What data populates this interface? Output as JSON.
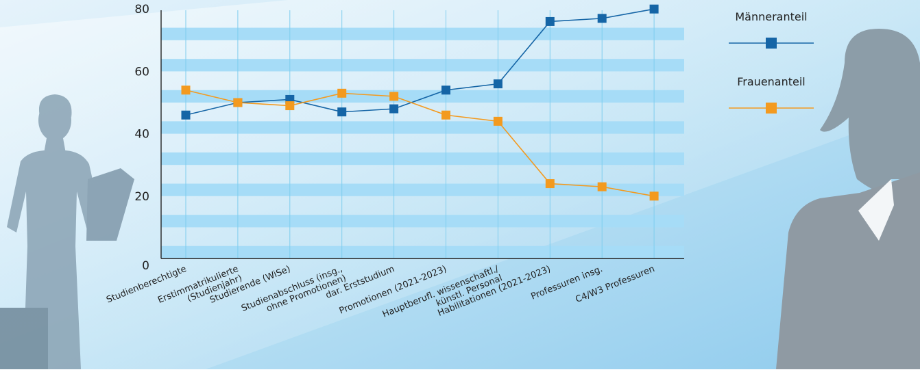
{
  "chart_data": {
    "type": "line",
    "categories": [
      [
        "Studienberechtigte"
      ],
      [
        "Erstimmatrikulierte",
        "(Studienjahr)"
      ],
      [
        "Studierende (WiSe)"
      ],
      [
        "Studienabschluss (insg.,",
        "ohne Promotionen)"
      ],
      [
        "dar. Erststudium"
      ],
      [
        "Promotionen (2021-2023)"
      ],
      [
        "Hauptberufl. wissenschaftl./",
        "künstl. Personal"
      ],
      [
        "Habilitationen (2021-2023)"
      ],
      [
        "Professuren insg."
      ],
      [
        "C4/W3 Professuren"
      ]
    ],
    "series": [
      {
        "name": "Männeranteil",
        "color": "#1565a6",
        "values": [
          46,
          50,
          51,
          47,
          48,
          54,
          56,
          76,
          77,
          80
        ]
      },
      {
        "name": "Frauenanteil",
        "color": "#f39a1f",
        "values": [
          54,
          50,
          49,
          53,
          52,
          46,
          44,
          24,
          23,
          20
        ]
      }
    ],
    "yticks": [
      0,
      20,
      40,
      60,
      80
    ],
    "ylim": [
      0,
      80
    ],
    "legend_position": "top-right",
    "grid": "horizontal stripes and vertical lines"
  }
}
